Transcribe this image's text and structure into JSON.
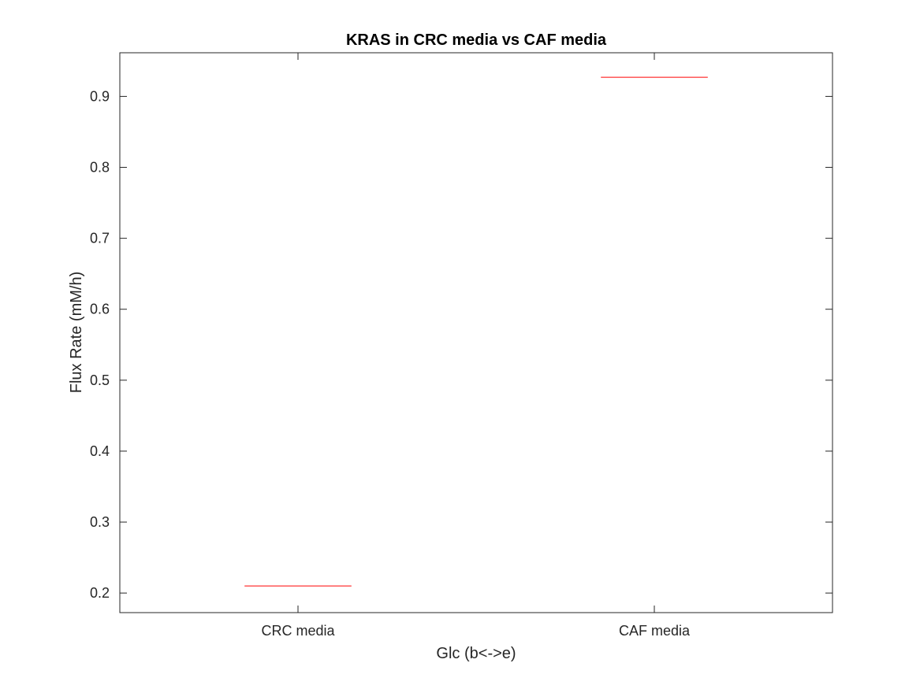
{
  "chart_data": {
    "type": "boxplot",
    "title": "KRAS in CRC media vs CAF media",
    "xlabel": "Glc (b<->e)",
    "ylabel": "Flux Rate (mM/h)",
    "categories": [
      "CRC media",
      "CAF media"
    ],
    "values": [
      0.21,
      0.927
    ],
    "ylim": [
      0.1724,
      0.9615
    ],
    "yticks": [
      0.2,
      0.3,
      0.4,
      0.5,
      0.6,
      0.7,
      0.8,
      0.9
    ],
    "ytick_labels": [
      "0.2",
      "0.3",
      "0.4",
      "0.5",
      "0.6",
      "0.7",
      "0.8",
      "0.9"
    ],
    "grid": false,
    "legend": "none",
    "median_color": "#ff0000",
    "axis_color": "#262626"
  }
}
